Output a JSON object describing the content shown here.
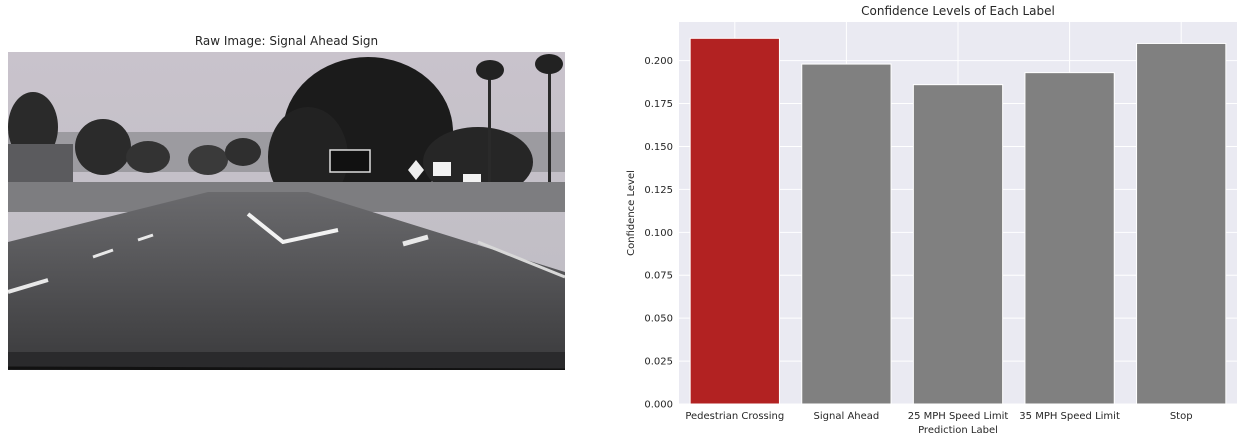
{
  "left_panel": {
    "title": "Raw Image: Signal Ahead Sign"
  },
  "chart_data": {
    "type": "bar",
    "title": "Confidence Levels of Each Label",
    "xlabel": "Prediction Label",
    "ylabel": "Confidence Level",
    "categories": [
      "Pedestrian Crossing",
      "Signal Ahead",
      "25 MPH Speed Limit",
      "35 MPH Speed Limit",
      "Stop"
    ],
    "values": [
      0.213,
      0.198,
      0.186,
      0.193,
      0.21
    ],
    "colors": [
      "#b22222",
      "#808080",
      "#808080",
      "#808080",
      "#808080"
    ],
    "ylim": [
      0,
      0.2225
    ],
    "yticks": [
      "0.000",
      "0.025",
      "0.050",
      "0.075",
      "0.100",
      "0.125",
      "0.150",
      "0.175",
      "0.200"
    ],
    "ytick_values": [
      0,
      0.025,
      0.05,
      0.075,
      0.1,
      0.125,
      0.15,
      0.175,
      0.2
    ],
    "grid": true,
    "background": "#eaeaf2"
  }
}
